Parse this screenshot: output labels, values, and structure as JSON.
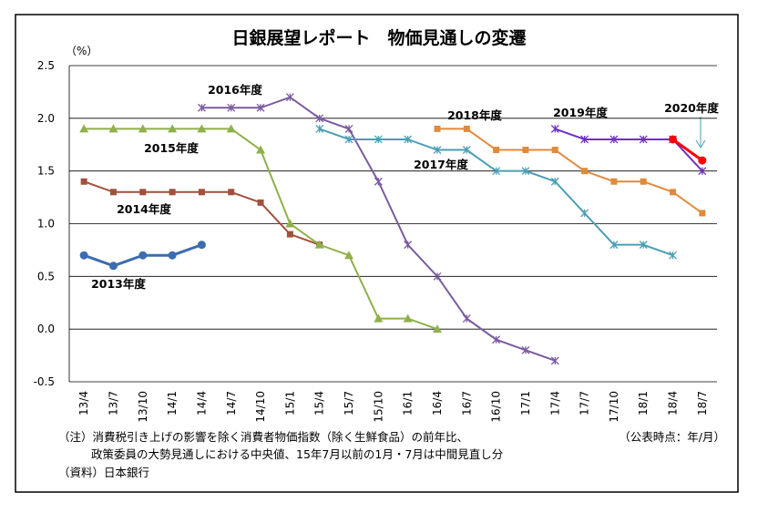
{
  "chart_data": {
    "type": "line",
    "title": "日銀展望レポート　物価見通しの変遷",
    "y_unit": "（%）",
    "x_note": "（公表時点：年/月）",
    "notes": [
      "（注）消費税引き上げの影響を除く消費者物価指数（除く生鮮食品）の前年比、",
      "政策委員の大勢見通しにおける中央値、15年7月以前の1月・7月は中間見直し分",
      "（資料）日本銀行"
    ],
    "categories": [
      "13/4",
      "13/7",
      "13/10",
      "14/1",
      "14/4",
      "14/7",
      "14/10",
      "15/1",
      "15/4",
      "15/7",
      "15/10",
      "16/1",
      "16/4",
      "16/7",
      "16/10",
      "17/1",
      "17/4",
      "17/7",
      "17/10",
      "18/1",
      "18/4",
      "18/7"
    ],
    "ylim": [
      -0.5,
      2.5
    ],
    "yticks": [
      -0.5,
      {
        "value": 0,
        "label": "0.0"
      },
      0.5,
      {
        "value": 1,
        "label": "1.0"
      },
      1.5,
      {
        "value": 2,
        "label": "2.0"
      },
      2.5
    ],
    "grid": true,
    "series": [
      {
        "name": "2013年度",
        "color": "#3d6cb0",
        "marker": "circle",
        "values": [
          0.7,
          0.6,
          0.7,
          0.7,
          0.8,
          null,
          null,
          null,
          null,
          null,
          null,
          null,
          null,
          null,
          null,
          null,
          null,
          null,
          null,
          null,
          null,
          null
        ]
      },
      {
        "name": "2014年度",
        "color": "#a0503c",
        "marker": "square",
        "values": [
          1.4,
          1.3,
          1.3,
          1.3,
          1.3,
          1.3,
          1.2,
          0.9,
          0.8,
          null,
          null,
          null,
          null,
          null,
          null,
          null,
          null,
          null,
          null,
          null,
          null,
          null
        ]
      },
      {
        "name": "2015年度",
        "color": "#8fb04a",
        "marker": "triangle",
        "values": [
          1.9,
          1.9,
          1.9,
          1.9,
          1.9,
          1.9,
          1.7,
          1.0,
          0.8,
          0.7,
          0.1,
          0.1,
          0.0,
          null,
          null,
          null,
          null,
          null,
          null,
          null,
          null,
          null
        ]
      },
      {
        "name": "2016年度",
        "color": "#7a5ba0",
        "marker": "x",
        "values": [
          null,
          null,
          null,
          null,
          2.1,
          2.1,
          2.1,
          2.2,
          2.0,
          1.9,
          1.4,
          0.8,
          0.5,
          0.1,
          -0.1,
          -0.2,
          -0.3,
          null,
          null,
          null,
          null,
          null
        ]
      },
      {
        "name": "2017年度",
        "color": "#4a9eb5",
        "marker": "x",
        "values": [
          null,
          null,
          null,
          null,
          null,
          null,
          null,
          null,
          1.9,
          1.8,
          1.8,
          1.8,
          1.7,
          1.7,
          1.5,
          1.5,
          1.4,
          1.1,
          0.8,
          0.8,
          0.7,
          null
        ]
      },
      {
        "name": "2018年度",
        "color": "#e08a3c",
        "marker": "square",
        "values": [
          null,
          null,
          null,
          null,
          null,
          null,
          null,
          null,
          null,
          null,
          null,
          null,
          1.9,
          1.9,
          1.7,
          1.7,
          1.7,
          1.5,
          1.4,
          1.4,
          1.3,
          1.1
        ]
      },
      {
        "name": "2019年度",
        "color": "#7030c0",
        "marker": "x",
        "values": [
          null,
          null,
          null,
          null,
          null,
          null,
          null,
          null,
          null,
          null,
          null,
          null,
          null,
          null,
          null,
          null,
          1.9,
          1.8,
          1.8,
          1.8,
          1.8,
          1.5
        ]
      },
      {
        "name": "2020年度",
        "color": "#ff0000",
        "marker": "circle",
        "values": [
          null,
          null,
          null,
          null,
          null,
          null,
          null,
          null,
          null,
          null,
          null,
          null,
          null,
          null,
          null,
          null,
          null,
          null,
          null,
          null,
          1.8,
          1.6
        ]
      }
    ]
  }
}
